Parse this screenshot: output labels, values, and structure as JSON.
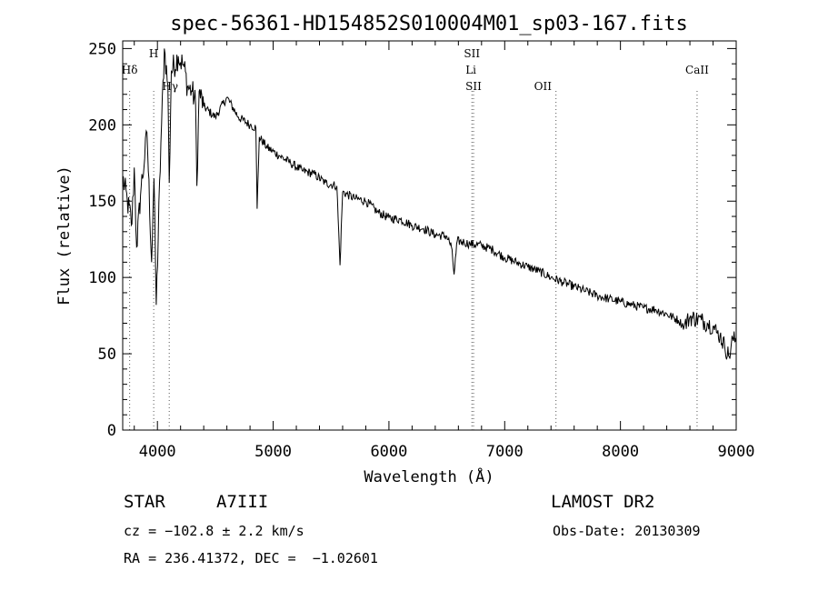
{
  "chart_data": {
    "type": "line",
    "title": "spec-56361-HD154852S010004M01_sp03-167.fits",
    "xlabel": "Wavelength (Å)",
    "ylabel": "Flux (relative)",
    "xlim": [
      3700,
      9000
    ],
    "ylim": [
      0,
      255
    ],
    "x_ticks": [
      4000,
      5000,
      6000,
      7000,
      8000,
      9000
    ],
    "y_ticks": [
      0,
      50,
      100,
      150,
      200,
      250
    ],
    "grid": false,
    "series": [
      {
        "x": [
          3700,
          3740,
          3780,
          3800,
          3820,
          3860,
          3890,
          3910,
          3950,
          3970,
          3990,
          4030,
          4060,
          4090,
          4102,
          4120,
          4180,
          4230,
          4260,
          4300,
          4330,
          4341,
          4360,
          4400,
          4500,
          4600,
          4700,
          4800,
          4850,
          4861,
          4880,
          4950,
          5050,
          5150,
          5250,
          5350,
          5450,
          5550,
          5577,
          5600,
          5700,
          5800,
          5900,
          6000,
          6100,
          6200,
          6300,
          6400,
          6500,
          6540,
          6563,
          6590,
          6650,
          6700,
          6800,
          6900,
          7000,
          7100,
          7200,
          7300,
          7400,
          7500,
          7600,
          7700,
          7800,
          7900,
          8000,
          8100,
          8200,
          8300,
          8400,
          8500,
          8550,
          8600,
          8700,
          8750,
          8800,
          8830,
          8860,
          8900,
          8940,
          8970,
          9000
        ],
        "y": [
          165,
          150,
          135,
          172,
          120,
          160,
          178,
          195,
          110,
          165,
          82,
          188,
          250,
          226,
          162,
          235,
          245,
          238,
          225,
          222,
          214,
          160,
          222,
          212,
          205,
          218,
          205,
          200,
          198,
          145,
          192,
          185,
          180,
          175,
          170,
          168,
          162,
          160,
          108,
          156,
          152,
          150,
          143,
          139,
          138,
          134,
          132,
          128,
          127,
          120,
          102,
          124,
          123,
          122,
          121,
          118,
          113,
          110,
          107,
          104,
          100,
          97,
          94,
          91,
          88,
          86,
          84,
          82,
          80,
          79,
          76,
          72,
          68,
          74,
          72,
          70,
          68,
          64,
          62,
          55,
          48,
          60,
          58
        ]
      }
    ],
    "annotations": [
      {
        "label": "Hδ",
        "x": 3760,
        "stack": 1
      },
      {
        "label": "H",
        "x": 3968,
        "stack": 0
      },
      {
        "label": "Hγ",
        "x": 4110,
        "stack": 2
      },
      {
        "label": "SII",
        "x": 6717,
        "stack": 0
      },
      {
        "label": "Li",
        "x": 6708,
        "stack": 1
      },
      {
        "label": "SII",
        "x": 6731,
        "stack": 2
      },
      {
        "label": "OII",
        "x": 7330,
        "stack": 2
      },
      {
        "label": "CaII",
        "x": 8662,
        "stack": 1
      }
    ],
    "reference_lines": [
      3760,
      3968,
      4102,
      6717,
      6731,
      7443,
      8662
    ]
  },
  "info": {
    "object_type": "STAR",
    "spectral_class": "A7III",
    "survey": "LAMOST DR2",
    "cz": "cz = −102.8 ± 2.2 km/s",
    "obs_date": "Obs-Date: 20130309",
    "coords": "RA = 236.41372, DEC =  −1.02601"
  }
}
